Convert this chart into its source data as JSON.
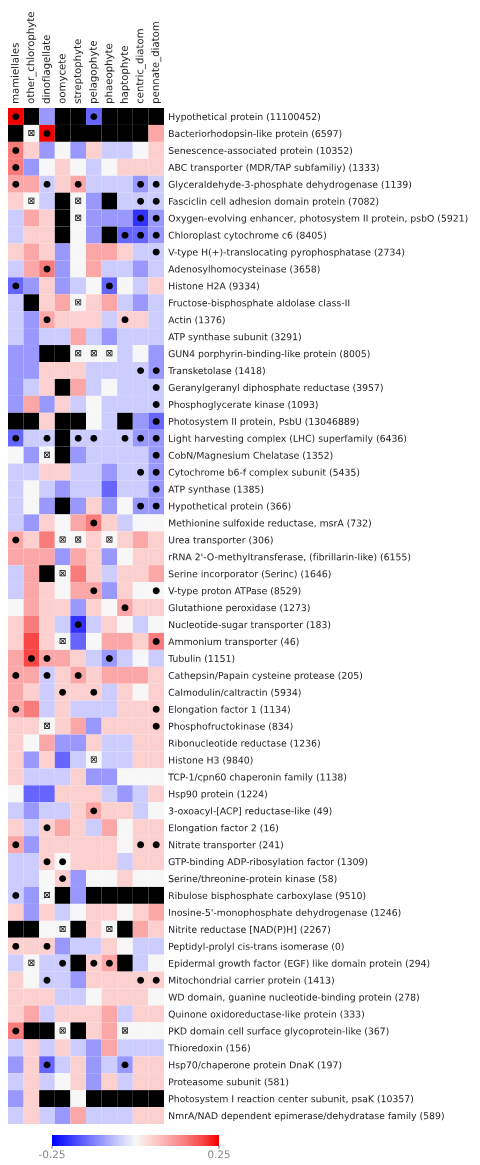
{
  "chart_data": {
    "type": "heatmap",
    "categories": [
      "mamiellales",
      "other_chlorophyte",
      "dinoflagellate",
      "oomycete",
      "streptophyte",
      "pelagophyte",
      "phaeophyte",
      "haptophyte",
      "centric_diatom",
      "pennate_diatom"
    ],
    "y_categories": [
      "Hypothetical protein (11100452)",
      "Bacteriorhodopsin-like protein (6597)",
      "Senescence-associated protein (10352)",
      "ABC transporter (MDR/TAP subfamiliy) (1333)",
      "Glyceraldehyde-3-phosphate dehydrogenase (1139)",
      "Fasciclin cell adhesion domain protein (7082)",
      "Oxygen-evolving enhancer, photosystem II protein, psbO (5921)",
      "Chloroplast cytochrome c6 (8405)",
      "V-type H(+)-translocating pyrophosphatase (2734)",
      "Adenosylhomocysteinase (3658)",
      "Histone H2A (9334)",
      "Fructose-bisphosphate aldolase class-II",
      "Actin (1376)",
      "ATP synthase subunit (3291)",
      "GUN4 porphyrin-binding-like protein (8005)",
      "Transketolase (1418)",
      "Geranylgeranyl diphosphate reductase (3957)",
      "Phosphoglycerate kinase (1093)",
      "Photosystem II protein, PsbU (13046889)",
      "Light harvesting complex (LHC) superfamily (6436)",
      "CobN/Magnesium Chelatase (1352)",
      "Cytochrome b6-f complex subunit (5435)",
      "ATP synthase (1385)",
      "Hypothetical protein (366)",
      "Methionine sulfoxide reductase, msrA (732)",
      "Urea transporter (306)",
      "rRNA 2'-O-methyltransferase, (fibrillarin-like) (6155)",
      "Serine incorporator (Serinc) (1646)",
      "V-type proton ATPase (8529)",
      "Glutathione peroxidase (1273)",
      "Nucleotide-sugar transporter (183)",
      "Ammonium transporter (46)",
      "Tubulin (1151)",
      "Cathepsin/Papain cysteine protease (205)",
      "Calmodulin/caltractin (5934)",
      "Elongation factor 1 (1134)",
      "Phosphofructokinase (834)",
      "Ribonucleotide reductase (1236)",
      "Histone H3 (9840)",
      "TCP-1/cpn60 chaperonin family (1138)",
      "Hsp90 protein (1224)",
      "3-oxoacyl-[ACP] reductase-like (49)",
      "Elongation factor 2 (16)",
      "Nitrate transporter (241)",
      "GTP-binding ADP-ribosylation factor (1309)",
      "Serine/threonine-protein kinase (58)",
      "Ribulose bisphosphate carboxylase (9510)",
      "Inosine-5'-monophosphate dehydrogenase (1246)",
      "Nitrite reductase [NAD(P)H] (2267)",
      "Peptidyl-prolyl cis-trans isomerase (0)",
      "Epidermal growth factor (EGF) like domain protein (294)",
      "Mitochondrial carrier protein (1413)",
      "WD domain, guanine nucleotide-binding protein (278)",
      "Quinone oxidoreductase-like protein (333)",
      "PKD domain cell surface glycoprotein-like (367)",
      "Thioredoxin (156)",
      "Hsp70/chaperone protein DnaK (197)",
      "Proteasome subunit (581)",
      "Photosystem I reaction center subunit, psaK (10357)",
      "NmrA/NAD dependent epimerase/dehydratase family (589)"
    ],
    "cells": [
      [
        0.25,
        null,
        -0.1,
        null,
        null,
        -0.15,
        null,
        null,
        null,
        null
      ],
      [
        null,
        0,
        0.25,
        null,
        null,
        null,
        null,
        null,
        null,
        0.1
      ],
      [
        0.15,
        0.05,
        -0.1,
        0,
        -0.1,
        0.05,
        -0.05,
        -0.05,
        0,
        0.05
      ],
      [
        0.15,
        -0.1,
        0,
        0.05,
        0,
        -0.05,
        0,
        0.05,
        0.05,
        0.05
      ],
      [
        0.1,
        0.1,
        -0.05,
        0.05,
        0.1,
        -0.05,
        -0.05,
        -0.05,
        -0.1,
        -0.05
      ],
      [
        0.05,
        0,
        -0.05,
        null,
        0,
        -0.1,
        null,
        -0.05,
        -0.05,
        -0.05
      ],
      [
        -0.05,
        0.1,
        0.05,
        null,
        0,
        -0.1,
        -0.1,
        -0.1,
        -0.2,
        -0.1
      ],
      [
        -0.05,
        0.05,
        0.05,
        null,
        0,
        -0.1,
        null,
        -0.15,
        -0.15,
        -0.1
      ],
      [
        0.05,
        0.1,
        0.05,
        -0.1,
        0,
        0.1,
        0.1,
        0.05,
        -0.05,
        -0.05
      ],
      [
        -0.05,
        0.1,
        0.15,
        -0.1,
        0,
        0.1,
        -0.05,
        -0.05,
        -0.1,
        -0.05
      ],
      [
        -0.15,
        -0.1,
        0.05,
        -0.1,
        -0.05,
        0,
        -0.15,
        0,
        -0.05,
        0.05
      ],
      [
        -0.05,
        null,
        0.05,
        0.1,
        0,
        0.05,
        0.1,
        -0.05,
        -0.1,
        -0.05
      ],
      [
        -0.05,
        -0.1,
        0.1,
        0.05,
        0.05,
        0.05,
        -0.05,
        0.05,
        0.05,
        -0.05
      ],
      [
        -0.05,
        -0.1,
        -0.05,
        -0.05,
        0.1,
        -0.05,
        -0.1,
        -0.05,
        -0.05,
        -0.05
      ],
      [
        -0.1,
        -0.1,
        null,
        null,
        0,
        0,
        0,
        -0.05,
        0,
        -0.1
      ],
      [
        -0.1,
        -0.1,
        0.05,
        0.05,
        0.05,
        -0.05,
        -0.05,
        -0.05,
        -0.05,
        -0.1
      ],
      [
        -0.1,
        -0.05,
        0.05,
        null,
        0.1,
        -0.05,
        0,
        -0.05,
        -0.05,
        -0.05
      ],
      [
        -0.1,
        0.1,
        -0.1,
        0.05,
        -0.05,
        0,
        -0.05,
        -0.05,
        -0.05,
        -0.05
      ],
      [
        null,
        null,
        0.05,
        null,
        null,
        0,
        -0.05,
        null,
        -0.1,
        -0.15
      ],
      [
        -0.15,
        -0.05,
        -0.05,
        null,
        -0.05,
        -0.05,
        -0.05,
        -0.05,
        -0.1,
        -0.1
      ],
      [
        0,
        -0.1,
        0,
        null,
        -0.1,
        -0.05,
        -0.05,
        -0.05,
        -0.05,
        -0.1
      ],
      [
        -0.05,
        -0.05,
        0.05,
        0.05,
        -0.05,
        -0.05,
        -0.1,
        -0.05,
        -0.05,
        -0.1
      ],
      [
        -0.05,
        0,
        -0.05,
        -0.1,
        -0.05,
        -0.05,
        -0.15,
        -0.05,
        -0.05,
        -0.1
      ],
      [
        -0.05,
        0,
        -0.1,
        null,
        -0.1,
        0.05,
        -0.1,
        0,
        -0.1,
        -0.1
      ],
      [
        -0.05,
        -0.1,
        0.05,
        0,
        0.1,
        0.15,
        0.05,
        -0.05,
        0,
        0
      ],
      [
        0.1,
        0.05,
        0.15,
        0,
        0,
        0.05,
        0,
        0.05,
        0.1,
        0.05
      ],
      [
        0.1,
        0.1,
        0.1,
        -0.1,
        0.1,
        0.05,
        -0.1,
        0,
        0.05,
        0.05
      ],
      [
        -0.05,
        0.1,
        null,
        0,
        0.15,
        0.05,
        -0.05,
        0.05,
        0.05,
        0.1
      ],
      [
        -0.05,
        0.1,
        0.05,
        0,
        0.1,
        0.1,
        -0.1,
        0.05,
        0,
        0
      ],
      [
        0,
        0.1,
        0.05,
        0.05,
        -0.1,
        0.05,
        0,
        0.1,
        0.05,
        0.05
      ],
      [
        0.05,
        0.15,
        0.05,
        -0.05,
        -0.2,
        -0.05,
        0.05,
        0,
        -0.05,
        0
      ],
      [
        0.05,
        0.2,
        0.05,
        0,
        -0.15,
        0,
        0.1,
        0.1,
        0.05,
        0.15
      ],
      [
        0.1,
        0.2,
        0.1,
        0.1,
        0.05,
        -0.05,
        -0.1,
        -0.05,
        0,
        -0.05
      ],
      [
        0.1,
        0.1,
        -0.05,
        0.05,
        0.1,
        0.05,
        0.1,
        0.1,
        0.1,
        0.05
      ],
      [
        0.1,
        0.05,
        -0.05,
        0.05,
        0.05,
        0.05,
        -0.05,
        0.05,
        0,
        0.05
      ],
      [
        0.1,
        0.15,
        -0.05,
        0.05,
        -0.05,
        -0.05,
        -0.05,
        0.05,
        0.05,
        0.05
      ],
      [
        0.05,
        0.05,
        0,
        0.05,
        0.1,
        -0.1,
        0.05,
        0.05,
        0.05,
        0.05
      ],
      [
        0.05,
        0,
        0.1,
        -0.1,
        -0.1,
        0.05,
        -0.05,
        -0.05,
        0.05,
        0.05
      ],
      [
        0.05,
        -0.1,
        0.05,
        -0.15,
        -0.05,
        0,
        -0.05,
        -0.05,
        0.05,
        0.05
      ],
      [
        0.05,
        -0.05,
        -0.05,
        -0.05,
        0.05,
        -0.1,
        -0.1,
        0,
        0,
        0
      ],
      [
        0,
        -0.15,
        -0.15,
        0.05,
        0.05,
        0.05,
        -0.05,
        -0.1,
        -0.05,
        0.05
      ],
      [
        -0.05,
        -0.1,
        -0.05,
        -0.05,
        0.05,
        0.1,
        0.05,
        0.05,
        -0.05,
        0
      ],
      [
        0.05,
        -0.05,
        0.05,
        0.1,
        0.05,
        -0.05,
        0.1,
        0,
        0.05,
        0.05
      ],
      [
        0.1,
        -0.1,
        0.05,
        0.05,
        0.05,
        0.05,
        0.05,
        0,
        0.05,
        0.05
      ],
      [
        -0.05,
        -0.05,
        0.05,
        0,
        0.05,
        0.05,
        0.05,
        -0.05,
        0.05,
        0.05
      ],
      [
        -0.05,
        -0.05,
        0,
        0.05,
        -0.1,
        0,
        0,
        0.05,
        0,
        0
      ],
      [
        -0.05,
        -0.1,
        0,
        null,
        -0.1,
        null,
        null,
        null,
        null,
        null
      ],
      [
        0.05,
        -0.1,
        0.05,
        -0.05,
        0,
        0.05,
        0.05,
        0,
        0.05,
        0.1
      ],
      [
        null,
        null,
        0,
        0,
        null,
        0.05,
        0,
        null,
        0.1,
        0.05
      ],
      [
        0.05,
        0.05,
        0.05,
        -0.1,
        -0.05,
        -0.05,
        0.05,
        0,
        -0.05,
        -0.05
      ],
      [
        -0.05,
        0,
        -0.05,
        -0.05,
        null,
        0.05,
        0.1,
        null,
        -0.05,
        0
      ],
      [
        0.05,
        0,
        -0.05,
        -0.05,
        -0.1,
        0.05,
        0.05,
        0.05,
        0.05,
        0.05
      ],
      [
        0.05,
        0.05,
        0.05,
        -0.05,
        -0.05,
        0,
        0.05,
        0.05,
        0.05,
        0
      ],
      [
        0.05,
        0.1,
        -0.05,
        0.05,
        0.05,
        0.05,
        0.1,
        -0.05,
        0.05,
        0.05
      ],
      [
        0.15,
        null,
        null,
        0,
        null,
        0.05,
        0.1,
        0,
        0,
        0
      ],
      [
        -0.05,
        0.05,
        -0.05,
        0.05,
        -0.05,
        -0.1,
        0.1,
        -0.05,
        -0.05,
        -0.05
      ],
      [
        -0.1,
        0.05,
        -0.15,
        -0.05,
        0.05,
        -0.1,
        -0.05,
        -0.1,
        0.05,
        0.05
      ],
      [
        -0.05,
        0.05,
        -0.05,
        0,
        0.05,
        -0.1,
        0.05,
        -0.05,
        0.05,
        0.05
      ],
      [
        -0.1,
        0.05,
        null,
        null,
        0,
        null,
        null,
        null,
        null,
        null
      ],
      [
        -0.05,
        0.05,
        -0.05,
        -0.1,
        0.1,
        -0.05,
        -0.05,
        -0.05,
        0.05,
        0.05
      ]
    ],
    "cell_labels": [
      [
        "●",
        null,
        null,
        null,
        null,
        "●",
        null,
        null,
        null,
        null
      ],
      [
        null,
        "⊠",
        "●",
        null,
        null,
        null,
        null,
        null,
        null,
        null
      ],
      [
        "●",
        null,
        null,
        null,
        null,
        null,
        null,
        null,
        null,
        null
      ],
      [
        "●",
        null,
        null,
        null,
        null,
        null,
        null,
        null,
        null,
        null
      ],
      [
        "●",
        null,
        "●",
        null,
        "●",
        null,
        null,
        null,
        "●",
        "●"
      ],
      [
        null,
        "⊠",
        null,
        null,
        "⊠",
        null,
        null,
        null,
        "●",
        "●"
      ],
      [
        null,
        null,
        null,
        null,
        "⊠",
        null,
        null,
        null,
        "●",
        "●"
      ],
      [
        null,
        null,
        null,
        null,
        null,
        null,
        null,
        "●",
        "●",
        "●"
      ],
      [
        null,
        null,
        null,
        null,
        null,
        null,
        null,
        null,
        null,
        "●"
      ],
      [
        null,
        null,
        "●",
        null,
        null,
        null,
        null,
        null,
        null,
        null
      ],
      [
        "●",
        null,
        null,
        null,
        null,
        null,
        "●",
        null,
        null,
        null
      ],
      [
        null,
        null,
        null,
        null,
        "⊠",
        null,
        null,
        null,
        null,
        null
      ],
      [
        null,
        null,
        "●",
        null,
        null,
        null,
        null,
        "●",
        null,
        null
      ],
      [
        null,
        null,
        null,
        null,
        null,
        null,
        null,
        null,
        null,
        null
      ],
      [
        null,
        null,
        null,
        null,
        "⊠",
        "⊠",
        "⊠",
        null,
        null,
        null
      ],
      [
        null,
        null,
        null,
        null,
        null,
        null,
        null,
        null,
        "●",
        "●"
      ],
      [
        null,
        null,
        null,
        null,
        null,
        null,
        null,
        null,
        null,
        "●"
      ],
      [
        null,
        null,
        null,
        null,
        null,
        null,
        null,
        null,
        null,
        "●"
      ],
      [
        null,
        null,
        null,
        null,
        null,
        null,
        null,
        null,
        null,
        "●"
      ],
      [
        "●",
        null,
        "●",
        null,
        "●",
        "●",
        null,
        "●",
        "●",
        "●"
      ],
      [
        null,
        null,
        "⊠",
        null,
        null,
        null,
        null,
        null,
        null,
        "●"
      ],
      [
        null,
        null,
        null,
        null,
        null,
        null,
        null,
        null,
        "●",
        "●"
      ],
      [
        null,
        null,
        null,
        null,
        null,
        null,
        null,
        null,
        null,
        "●"
      ],
      [
        null,
        null,
        null,
        null,
        null,
        null,
        null,
        null,
        "●",
        "●"
      ],
      [
        null,
        null,
        null,
        null,
        null,
        "●",
        null,
        null,
        null,
        null
      ],
      [
        "●",
        null,
        null,
        "⊠",
        "⊠",
        null,
        "⊠",
        null,
        null,
        null
      ],
      [
        null,
        null,
        null,
        null,
        null,
        null,
        null,
        null,
        null,
        null
      ],
      [
        null,
        null,
        null,
        "⊠",
        null,
        null,
        null,
        null,
        null,
        null
      ],
      [
        null,
        null,
        null,
        null,
        null,
        "●",
        null,
        null,
        null,
        "●"
      ],
      [
        null,
        null,
        null,
        null,
        null,
        null,
        null,
        "●",
        null,
        null
      ],
      [
        null,
        null,
        null,
        null,
        "●",
        null,
        null,
        null,
        null,
        null
      ],
      [
        null,
        null,
        null,
        "⊠",
        null,
        null,
        null,
        null,
        null,
        "●"
      ],
      [
        null,
        "●",
        "●",
        null,
        null,
        null,
        "●",
        null,
        null,
        null
      ],
      [
        "●",
        null,
        "●",
        null,
        "●",
        null,
        null,
        null,
        null,
        null
      ],
      [
        null,
        null,
        null,
        "●",
        null,
        "●",
        null,
        null,
        null,
        null
      ],
      [
        "●",
        null,
        null,
        null,
        null,
        null,
        null,
        null,
        null,
        "●"
      ],
      [
        null,
        null,
        "⊠",
        null,
        null,
        null,
        null,
        null,
        null,
        "●"
      ],
      [
        null,
        null,
        null,
        null,
        null,
        null,
        null,
        null,
        null,
        null
      ],
      [
        null,
        null,
        null,
        null,
        null,
        "⊠",
        null,
        null,
        null,
        null
      ],
      [
        null,
        null,
        null,
        null,
        null,
        null,
        null,
        null,
        null,
        null
      ],
      [
        null,
        null,
        null,
        null,
        null,
        null,
        null,
        null,
        null,
        null
      ],
      [
        null,
        null,
        null,
        null,
        null,
        "●",
        null,
        null,
        null,
        null
      ],
      [
        null,
        null,
        "●",
        null,
        null,
        null,
        null,
        null,
        null,
        null
      ],
      [
        "●",
        null,
        null,
        null,
        null,
        null,
        null,
        null,
        "●",
        "●"
      ],
      [
        null,
        null,
        "●",
        "●",
        null,
        null,
        null,
        null,
        null,
        null
      ],
      [
        null,
        null,
        null,
        "●",
        null,
        null,
        null,
        null,
        null,
        null
      ],
      [
        "●",
        null,
        "⊠",
        null,
        null,
        null,
        null,
        null,
        null,
        null
      ],
      [
        null,
        null,
        null,
        null,
        null,
        null,
        null,
        null,
        null,
        null
      ],
      [
        null,
        null,
        null,
        "⊠",
        null,
        null,
        "⊠",
        null,
        null,
        null
      ],
      [
        "●",
        null,
        "●",
        null,
        null,
        null,
        null,
        null,
        null,
        null
      ],
      [
        null,
        "⊠",
        null,
        "●",
        null,
        "●",
        "●",
        null,
        null,
        null
      ],
      [
        null,
        null,
        "●",
        null,
        null,
        null,
        null,
        null,
        "●",
        "●"
      ],
      [
        null,
        null,
        null,
        null,
        null,
        null,
        null,
        null,
        null,
        null
      ],
      [
        null,
        null,
        null,
        null,
        null,
        null,
        null,
        null,
        null,
        null
      ],
      [
        "●",
        null,
        null,
        "⊠",
        null,
        null,
        null,
        "⊠",
        null,
        null
      ],
      [
        null,
        null,
        null,
        null,
        null,
        null,
        null,
        null,
        null,
        null
      ],
      [
        null,
        null,
        "●",
        null,
        null,
        null,
        null,
        "●",
        null,
        null
      ],
      [
        null,
        null,
        null,
        null,
        null,
        null,
        null,
        null,
        null,
        null
      ],
      [
        null,
        null,
        null,
        null,
        null,
        null,
        null,
        null,
        null,
        null
      ],
      [
        null,
        null,
        null,
        null,
        null,
        null,
        null,
        null,
        null,
        null
      ]
    ],
    "clim": [
      -0.25,
      0.25
    ],
    "cticks": [
      -0.25,
      0.25
    ]
  }
}
